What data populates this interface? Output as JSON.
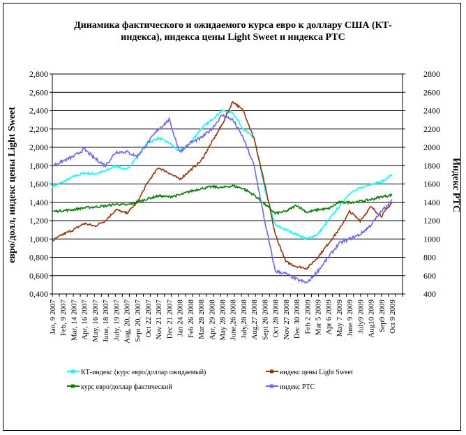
{
  "chart_data": {
    "type": "line",
    "title_line1": "Динамика фактического и ожидаемого курса евро к доллару США  (КТ-",
    "title_line2": "индекса), индекса цены Light Sweet и индекса РТС",
    "ylabel_left": "евро/долл, индекс цены Light Sweet",
    "ylabel_right": "Индекс РТС",
    "ylim_left": [
      0.4,
      2.8
    ],
    "ylim_right": [
      400,
      2800
    ],
    "left_ticks": [
      "0,400",
      "0,600",
      "0,800",
      "1,000",
      "1,200",
      "1,400",
      "1,600",
      "1,800",
      "2,000",
      "2,200",
      "2,400",
      "2,600",
      "2,800"
    ],
    "right_ticks": [
      "400",
      "600",
      "800",
      "1000",
      "1200",
      "1400",
      "1600",
      "1800",
      "2000",
      "2200",
      "2400",
      "2600",
      "2800"
    ],
    "grid": true,
    "legend_placement": "bottom",
    "x_labels": [
      "Jan, 9 2007",
      "Feb, 9 2007",
      "Mar, 14 2007",
      "Apr, 16 2007",
      "May, 16 2007",
      "June, 18 2007",
      "July, 19 2007",
      "Aug, 20, 2007",
      "Sept 20, 2007",
      "Oct 22 2007",
      "Nov 21 2007",
      "Dec 21 2007",
      "Jan 24 2008",
      "Feb 26 2008",
      "Mar 28 2008",
      "Apr, 29 2008",
      "May 28 2008",
      "June,26 2008",
      "July,28 2008",
      "Aug,27 2008",
      "Sept 26 2008",
      "Oct 28 2008",
      "Nov 27 2008",
      "Dec 30 2008",
      "Feb 2 2009",
      "Mar 5 2009",
      "Apr 6 2009",
      "May 7 2009",
      "June 9 2009",
      "July9 2009",
      "Aug10 2009",
      "Sep9 2009",
      "Oct 9 2009"
    ],
    "series": [
      {
        "name": "КТ-индекс (курс евро/доллар ожидаемый)",
        "axis": "left",
        "color": "#00ffff",
        "values": [
          1.57,
          1.62,
          1.68,
          1.72,
          1.71,
          1.74,
          1.8,
          1.75,
          1.9,
          2.05,
          2.1,
          2.05,
          1.95,
          2.05,
          2.2,
          2.3,
          2.4,
          2.38,
          2.2,
          2.1,
          1.55,
          1.15,
          1.1,
          1.05,
          1.0,
          1.05,
          1.2,
          1.35,
          1.5,
          1.55,
          1.6,
          1.62,
          1.7
        ]
      },
      {
        "name": "индекс цены Light Sweet",
        "axis": "left",
        "color": "#993300",
        "values": [
          0.98,
          1.05,
          1.1,
          1.17,
          1.14,
          1.2,
          1.32,
          1.28,
          1.4,
          1.62,
          1.78,
          1.72,
          1.65,
          1.75,
          1.85,
          2.05,
          2.25,
          2.5,
          2.4,
          2.1,
          1.6,
          1.05,
          0.75,
          0.7,
          0.68,
          0.8,
          0.95,
          1.1,
          1.3,
          1.2,
          1.35,
          1.25,
          1.4
        ]
      },
      {
        "name": "курс евро/доллар фактический",
        "axis": "left",
        "color": "#008000",
        "values": [
          1.3,
          1.31,
          1.32,
          1.34,
          1.35,
          1.36,
          1.38,
          1.37,
          1.4,
          1.44,
          1.47,
          1.46,
          1.48,
          1.52,
          1.55,
          1.57,
          1.56,
          1.58,
          1.55,
          1.48,
          1.38,
          1.28,
          1.3,
          1.37,
          1.29,
          1.32,
          1.33,
          1.4,
          1.4,
          1.41,
          1.43,
          1.46,
          1.48
        ]
      },
      {
        "name": "индекс РТС",
        "axis": "right",
        "color": "#6666ff",
        "values": [
          1800,
          1850,
          1900,
          1980,
          1880,
          1800,
          1950,
          1950,
          1900,
          2050,
          2200,
          2300,
          1950,
          2050,
          2100,
          2200,
          2350,
          2300,
          2100,
          1800,
          1200,
          650,
          620,
          560,
          520,
          650,
          800,
          950,
          1000,
          1050,
          1150,
          1300,
          1430
        ]
      }
    ]
  }
}
